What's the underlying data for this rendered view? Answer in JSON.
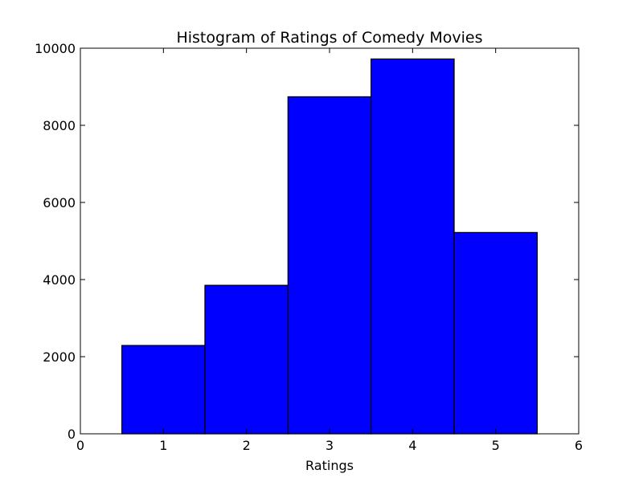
{
  "chart_data": {
    "type": "bar",
    "title": "Histogram of Ratings of Comedy Movies",
    "xlabel": "Ratings",
    "ylabel": "",
    "xlim": [
      0,
      6
    ],
    "ylim": [
      0,
      10000
    ],
    "xticks": [
      0,
      1,
      2,
      3,
      4,
      5,
      6
    ],
    "yticks": [
      0,
      2000,
      4000,
      6000,
      8000,
      10000
    ],
    "bins": [
      {
        "center": 1,
        "value": 2290
      },
      {
        "center": 2,
        "value": 3850
      },
      {
        "center": 3,
        "value": 8740
      },
      {
        "center": 4,
        "value": 9720
      },
      {
        "center": 5,
        "value": 5220
      }
    ],
    "bin_width": 1,
    "bar_color": "#0000ff",
    "edge_color": "#000000",
    "grid": false,
    "legend": "none"
  }
}
